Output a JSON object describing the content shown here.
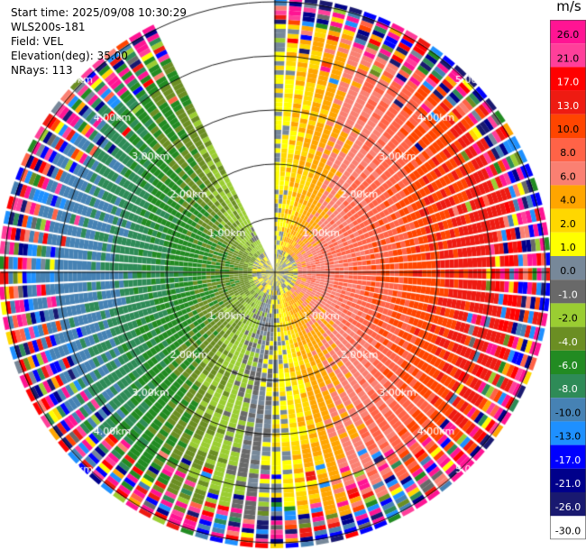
{
  "meta": {
    "start_time": "Start time: 2025/09/08 10:30:29",
    "instrument": "WLS200s-181",
    "field": "Field: VEL",
    "elevation": "Elevation(deg): 35.00",
    "nrays": "NRays: 113"
  },
  "colorbar": {
    "unit": "m/s",
    "bins": [
      {
        "label": "26.0",
        "color": "#ff1493"
      },
      {
        "label": "21.0",
        "color": "#ff3f9a"
      },
      {
        "label": "17.0",
        "color": "#ff0000"
      },
      {
        "label": "13.0",
        "color": "#ee1b12"
      },
      {
        "label": "10.0",
        "color": "#ff4500"
      },
      {
        "label": "8.0",
        "color": "#ff6347"
      },
      {
        "label": "6.0",
        "color": "#fa8072"
      },
      {
        "label": "4.0",
        "color": "#ffa500"
      },
      {
        "label": "2.0",
        "color": "#ffd700"
      },
      {
        "label": "1.0",
        "color": "#ffff00"
      },
      {
        "label": "0.0",
        "color": "#778899"
      },
      {
        "label": "-1.0",
        "color": "#696969"
      },
      {
        "label": "-2.0",
        "color": "#9acd32"
      },
      {
        "label": "-4.0",
        "color": "#6b8e23"
      },
      {
        "label": "-6.0",
        "color": "#228b22"
      },
      {
        "label": "-8.0",
        "color": "#2e8b57"
      },
      {
        "label": "-10.0",
        "color": "#4682b4"
      },
      {
        "label": "-13.0",
        "color": "#1e90ff"
      },
      {
        "label": "-17.0",
        "color": "#0000ff"
      },
      {
        "label": "-21.0",
        "color": "#00008b"
      },
      {
        "label": "-26.0",
        "color": "#191970"
      },
      {
        "label": "-30.0",
        "color": ""
      }
    ]
  },
  "chart_data": {
    "type": "heatmap",
    "projection": "polar PPI",
    "field": "VEL",
    "units": "m/s",
    "elevation_deg": 35.0,
    "n_rays": 113,
    "range_rings_km": [
      1,
      2,
      3,
      4,
      5
    ],
    "ring_labels": [
      "1.00km",
      "2.00km",
      "3.00km",
      "4.00km",
      "5.00km"
    ],
    "max_range_km": 5.0,
    "gap_sector_deg": [
      333,
      360
    ],
    "wind_pattern": "approaching (negative, green/blue) toward west, receding (positive, orange/red) toward east",
    "grid": true
  }
}
